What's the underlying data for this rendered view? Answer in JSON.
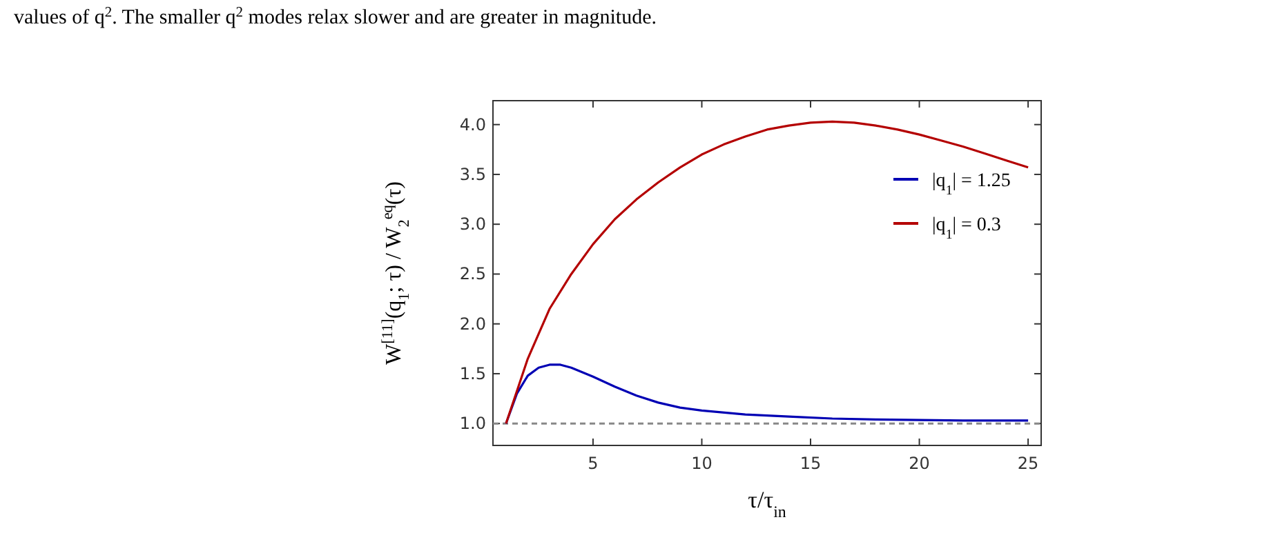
{
  "chart_data": {
    "type": "line",
    "annotations": [
      "values of q$^{2}$. The smaller q$^{2}$ modes relax slower and are greater in magnitude."
    ],
    "xlabel": "τ/τ$_{in}$",
    "ylabel": "W$^{[11]}$(q$_{1}$; τ) / W$_{2}$$^{eq}$(τ)",
    "xlim": [
      0.4,
      25.6
    ],
    "ylim": [
      0.78,
      4.24
    ],
    "xticks": [
      5,
      10,
      15,
      20,
      25
    ],
    "yticks": [
      {
        "value": 1,
        "label": "1.0"
      },
      {
        "value": 1.5,
        "label": "1.5"
      },
      {
        "value": 2,
        "label": "2.0"
      },
      {
        "value": 2.5,
        "label": "2.5"
      },
      {
        "value": 3,
        "label": "3.0"
      },
      {
        "value": 3.5,
        "label": "3.5"
      },
      {
        "value": 4,
        "label": "4.0"
      }
    ],
    "legend": "top right",
    "grid": false,
    "line_style": "solid",
    "series": [
      {
        "name": "|q$_{1}$| = 1.25",
        "color": "#0000b4",
        "x": [
          1,
          1.5,
          2,
          2.5,
          3,
          3.5,
          4,
          5,
          6,
          7,
          8,
          9,
          10,
          12,
          14,
          16,
          18,
          20,
          22,
          25
        ],
        "values": [
          1,
          1.3,
          1.48,
          1.56,
          1.59,
          1.59,
          1.56,
          1.47,
          1.37,
          1.28,
          1.21,
          1.16,
          1.13,
          1.09,
          1.07,
          1.05,
          1.04,
          1.035,
          1.03,
          1.03
        ]
      },
      {
        "name": "|q$_{1}$| = 0.3",
        "color": "#b40000",
        "x": [
          1,
          2,
          3,
          4,
          5,
          6,
          7,
          8,
          9,
          10,
          11,
          12,
          13,
          14,
          15,
          16,
          17,
          18,
          19,
          20,
          21,
          22,
          23,
          24,
          25
        ],
        "values": [
          1,
          1.65,
          2.15,
          2.5,
          2.8,
          3.05,
          3.25,
          3.42,
          3.57,
          3.7,
          3.8,
          3.88,
          3.95,
          3.99,
          4.02,
          4.03,
          4.02,
          3.99,
          3.95,
          3.9,
          3.84,
          3.78,
          3.71,
          3.64,
          3.57
        ]
      }
    ],
    "ref_lines": [
      {
        "axis": "y",
        "value": 1,
        "color": "#888888",
        "line_style": "dashed"
      }
    ]
  }
}
